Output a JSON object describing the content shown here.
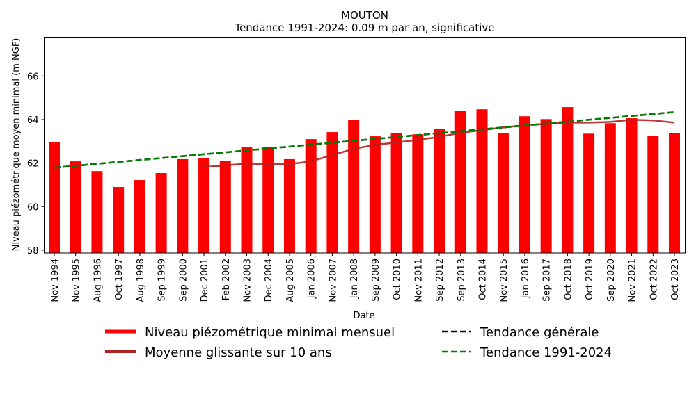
{
  "chart_data": {
    "type": "bar",
    "title": "MOUTON",
    "subtitle": "Tendance 1991-2024: 0.09 m par an, significative",
    "xlabel": "Date",
    "ylabel": "Niveau piézométrique moyen minimal (m NGF)",
    "ylim": [
      57.87,
      67.78
    ],
    "yticks": [
      58,
      60,
      62,
      64,
      66
    ],
    "categories": [
      "Nov 1994",
      "Nov 1995",
      "Aug 1996",
      "Oct 1997",
      "Aug 1998",
      "Sep 1999",
      "Sep 2000",
      "Dec 2001",
      "Feb 2002",
      "Nov 2003",
      "Dec 2004",
      "Aug 2005",
      "Jan 2006",
      "Nov 2007",
      "Jan 2008",
      "Sep 2009",
      "Oct 2010",
      "Nov 2011",
      "Sep 2012",
      "Sep 2013",
      "Oct 2014",
      "Nov 2015",
      "Jan 2016",
      "Sep 2017",
      "Oct 2018",
      "Oct 2019",
      "Sep 2020",
      "Nov 2021",
      "Oct 2022",
      "Oct 2023"
    ],
    "series": [
      {
        "name": "Niveau piézométrique minimal mensuel",
        "type": "bar",
        "color": "#ff0000",
        "values": [
          62.97,
          62.08,
          61.63,
          60.9,
          61.22,
          61.54,
          62.18,
          62.21,
          62.11,
          62.72,
          62.75,
          62.18,
          63.1,
          63.42,
          63.99,
          63.23,
          63.39,
          63.32,
          63.58,
          64.41,
          64.47,
          63.39,
          64.15,
          64.02,
          64.57,
          63.35,
          63.83,
          64.06,
          63.26,
          63.39
        ]
      },
      {
        "name": "Moyenne glissante sur 10 ans",
        "type": "line",
        "color": "#b22222",
        "values": [
          null,
          null,
          null,
          null,
          null,
          null,
          null,
          61.82,
          61.89,
          61.98,
          61.95,
          61.95,
          62.08,
          62.37,
          62.65,
          62.84,
          62.94,
          63.07,
          63.2,
          63.39,
          63.51,
          63.64,
          63.74,
          63.8,
          63.86,
          63.86,
          63.89,
          63.99,
          63.96,
          63.86
        ]
      },
      {
        "name": "Tendance générale",
        "type": "line-dashed",
        "color": "#000000",
        "start": 61.79,
        "end": 64.34
      },
      {
        "name": "Tendance 1991-2024",
        "type": "line-dashed",
        "color": "#008000",
        "start": 61.79,
        "end": 64.34
      }
    ],
    "legend": "bottom"
  }
}
